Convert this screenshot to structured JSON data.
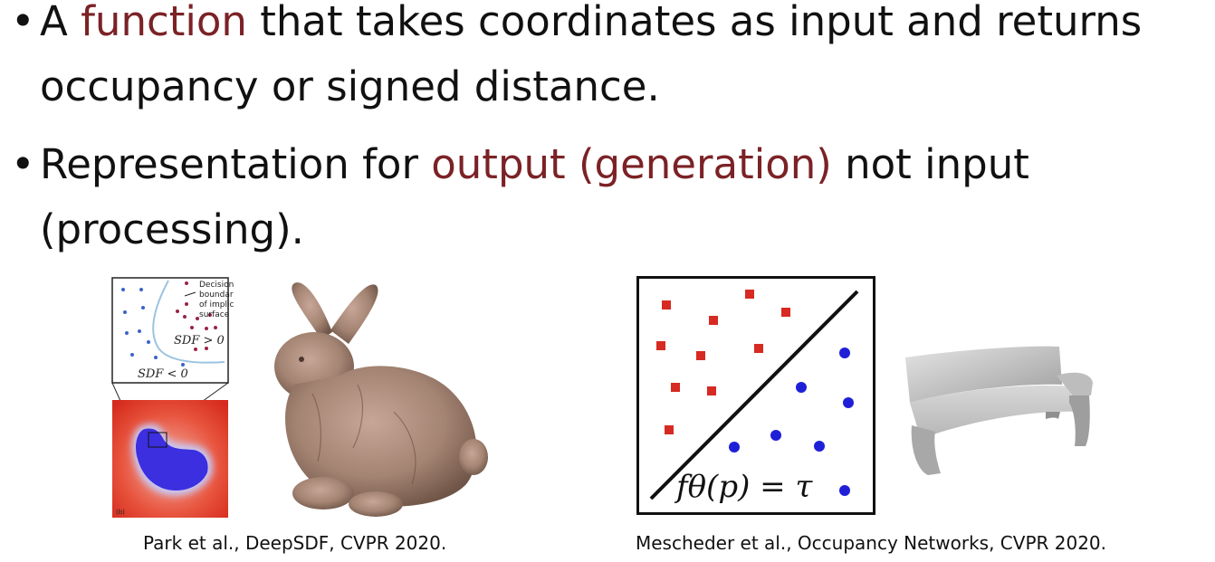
{
  "bullets": [
    {
      "pre": "A ",
      "highlight": "function",
      "line1_post": " that takes coordinates as input and returns",
      "line2": "occupancy or signed distance."
    },
    {
      "pre": "Representation for ",
      "highlight": "output (generation)",
      "line1_post": " not input",
      "line2": "(processing)."
    }
  ],
  "colors": {
    "highlight": "#7b2226",
    "red_point": "#d62a22",
    "blue_point": "#1f1fd8"
  },
  "figure_left": {
    "inset_labels": [
      "Decision",
      "boundary",
      "of implicit",
      "surface"
    ],
    "sdf_positive": "SDF > 0",
    "sdf_negative": "SDF < 0",
    "panel_label": "(b)",
    "caption": "Park et al., DeepSDF, CVPR 2020."
  },
  "figure_right": {
    "equation": "fθ(p) = τ",
    "caption": "Mescheder et al., Occupancy Networks, CVPR 2020."
  }
}
